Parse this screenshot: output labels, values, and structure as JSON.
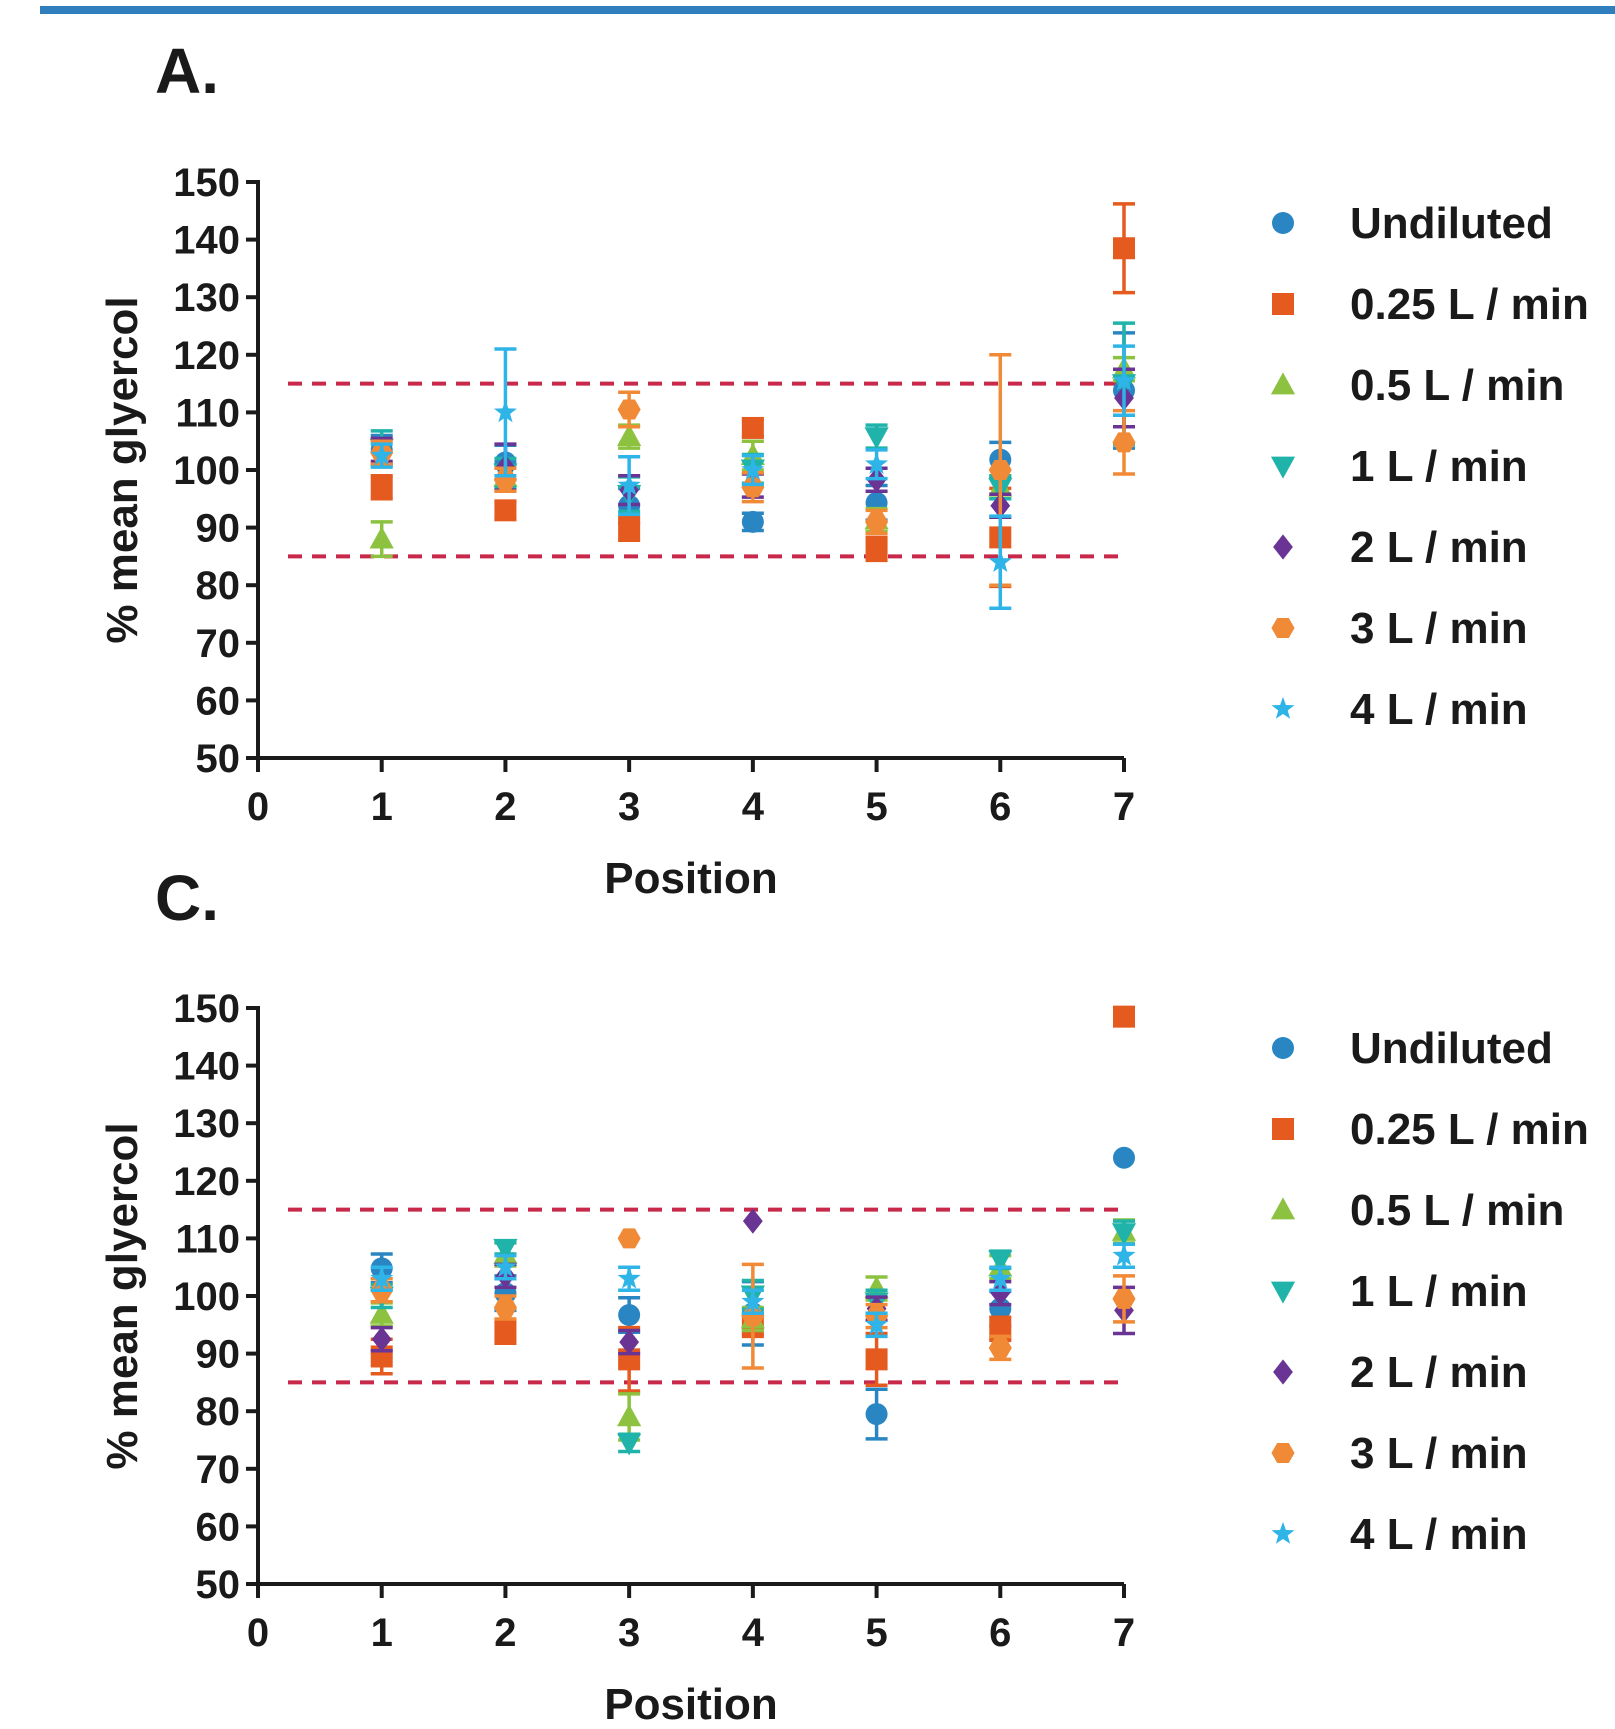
{
  "frame": {
    "bar_color": "#2f7fbf"
  },
  "legend": {
    "entries": [
      "Undiluted",
      "0.25 L / min",
      "0.5 L / min",
      "1 L / min",
      "2 L / min",
      "3 L / min",
      "4 L / min"
    ]
  },
  "series_styles": [
    {
      "name": "Undiluted",
      "color": "#2a86c2",
      "marker": "circle"
    },
    {
      "name": "0.25 L / min",
      "color": "#e55a1e",
      "marker": "square"
    },
    {
      "name": "0.5 L / min",
      "color": "#8cc240",
      "marker": "triangle-up"
    },
    {
      "name": "1 L / min",
      "color": "#1fb3aa",
      "marker": "triangle-down"
    },
    {
      "name": "2 L / min",
      "color": "#6a3495",
      "marker": "diamond"
    },
    {
      "name": "3 L / min",
      "color": "#f08a36",
      "marker": "hexagon"
    },
    {
      "name": "4 L / min",
      "color": "#2fb4e8",
      "marker": "star"
    }
  ],
  "chart_data": [
    {
      "panel_label": "A.",
      "type": "scatter",
      "xlabel": "Position",
      "ylabel": "% mean glyercol",
      "xlim": [
        0,
        7
      ],
      "ylim": [
        50,
        150
      ],
      "xticks": [
        0,
        1,
        2,
        3,
        4,
        5,
        6,
        7
      ],
      "yticks": [
        50,
        60,
        70,
        80,
        90,
        100,
        110,
        120,
        130,
        140,
        150
      ],
      "reference_lines": [
        115,
        85
      ],
      "reference_line_color": "#c8284a",
      "x": [
        1,
        2,
        3,
        4,
        5,
        6,
        7
      ],
      "series": [
        {
          "name": "Undiluted",
          "values": [
            103.5,
            101.3,
            93.8,
            91.0,
            94.3,
            101.8,
            113.8
          ],
          "errors": [
            2.5,
            3.0,
            3.0,
            1.5,
            3.0,
            3.0,
            10.0
          ]
        },
        {
          "name": "0.25 L / min",
          "values": [
            97.0,
            93.0,
            89.8,
            107.3,
            86.3,
            88.3,
            138.5
          ],
          "errors": [
            2.0,
            1.5,
            2.0,
            1.5,
            2.0,
            8.5,
            7.7
          ]
        },
        {
          "name": "0.5 L / min",
          "values": [
            88.0,
            98.7,
            105.8,
            102.5,
            91.3,
            97.0,
            117.5
          ],
          "errors": [
            3.0,
            2.0,
            2.0,
            2.5,
            2.0,
            2.0,
            2.0
          ]
        },
        {
          "name": "1 L / min",
          "values": [
            103.8,
            99.5,
            95.8,
            100.2,
            105.8,
            97.0,
            115.0
          ],
          "errors": [
            3.0,
            2.5,
            3.0,
            2.5,
            2.0,
            2.0,
            10.5
          ]
        },
        {
          "name": "2 L / min",
          "values": [
            103.5,
            100.5,
            96.5,
            97.3,
            98.3,
            93.8,
            112.5
          ],
          "errors": [
            2.0,
            4.0,
            2.5,
            2.0,
            2.0,
            2.0,
            5.0
          ]
        },
        {
          "name": "3 L / min",
          "values": [
            103.0,
            98.3,
            110.5,
            97.0,
            91.0,
            100.0,
            104.8
          ],
          "errors": [
            2.0,
            2.0,
            3.0,
            2.5,
            2.0,
            20.0,
            5.5
          ]
        },
        {
          "name": "4 L / min",
          "values": [
            102.5,
            110.0,
            97.3,
            100.0,
            101.0,
            84.0,
            115.5
          ],
          "errors": [
            2.0,
            11.0,
            5.0,
            2.5,
            2.5,
            8.0,
            6.0
          ]
        }
      ]
    },
    {
      "panel_label": "C.",
      "type": "scatter",
      "xlabel": "Position",
      "ylabel": "% mean glyercol",
      "xlim": [
        0,
        7
      ],
      "ylim": [
        50,
        150
      ],
      "xticks": [
        0,
        1,
        2,
        3,
        4,
        5,
        6,
        7
      ],
      "yticks": [
        50,
        60,
        70,
        80,
        90,
        100,
        110,
        120,
        130,
        140,
        150
      ],
      "reference_lines": [
        115,
        85
      ],
      "reference_line_color": "#c8284a",
      "x": [
        1,
        2,
        3,
        4,
        5,
        6,
        7
      ],
      "series": [
        {
          "name": "Undiluted",
          "values": [
            104.8,
            100.5,
            96.7,
            97.0,
            79.5,
            97.8,
            124.0
          ],
          "errors": [
            2.5,
            3.0,
            3.0,
            5.5,
            4.3,
            3.0,
            0
          ]
        },
        {
          "name": "0.25 L / min",
          "values": [
            89.5,
            93.8,
            89.0,
            95.0,
            89.0,
            94.3,
            148.5
          ],
          "errors": [
            3.0,
            2.0,
            5.5,
            2.0,
            4.5,
            2.0,
            0
          ]
        },
        {
          "name": "0.5 L / min",
          "values": [
            96.8,
            107.2,
            79.0,
            96.0,
            101.3,
            105.0,
            111.2
          ],
          "errors": [
            2.0,
            2.0,
            4.0,
            2.0,
            2.0,
            2.0,
            2.0
          ]
        },
        {
          "name": "1 L / min",
          "values": [
            100.0,
            108.3,
            74.5,
            100.2,
            99.0,
            106.3,
            111.0
          ],
          "errors": [
            2.0,
            1.0,
            1.5,
            2.5,
            2.0,
            1.5,
            2.0
          ]
        },
        {
          "name": "2 L / min",
          "values": [
            92.5,
            103.5,
            92.0,
            113.0,
            97.8,
            100.5,
            97.5
          ],
          "errors": [
            2.0,
            2.0,
            2.0,
            0,
            2.0,
            2.0,
            4.0
          ]
        },
        {
          "name": "3 L / min",
          "values": [
            101.0,
            98.0,
            110.0,
            96.5,
            96.5,
            91.0,
            99.5
          ],
          "errors": [
            2.0,
            2.0,
            0,
            9.0,
            2.0,
            2.0,
            4.0
          ]
        },
        {
          "name": "4 L / min",
          "values": [
            103.0,
            105.0,
            103.0,
            99.0,
            95.0,
            103.0,
            107.0
          ],
          "errors": [
            2.0,
            2.0,
            2.0,
            2.0,
            2.0,
            2.0,
            2.0
          ]
        }
      ]
    }
  ]
}
